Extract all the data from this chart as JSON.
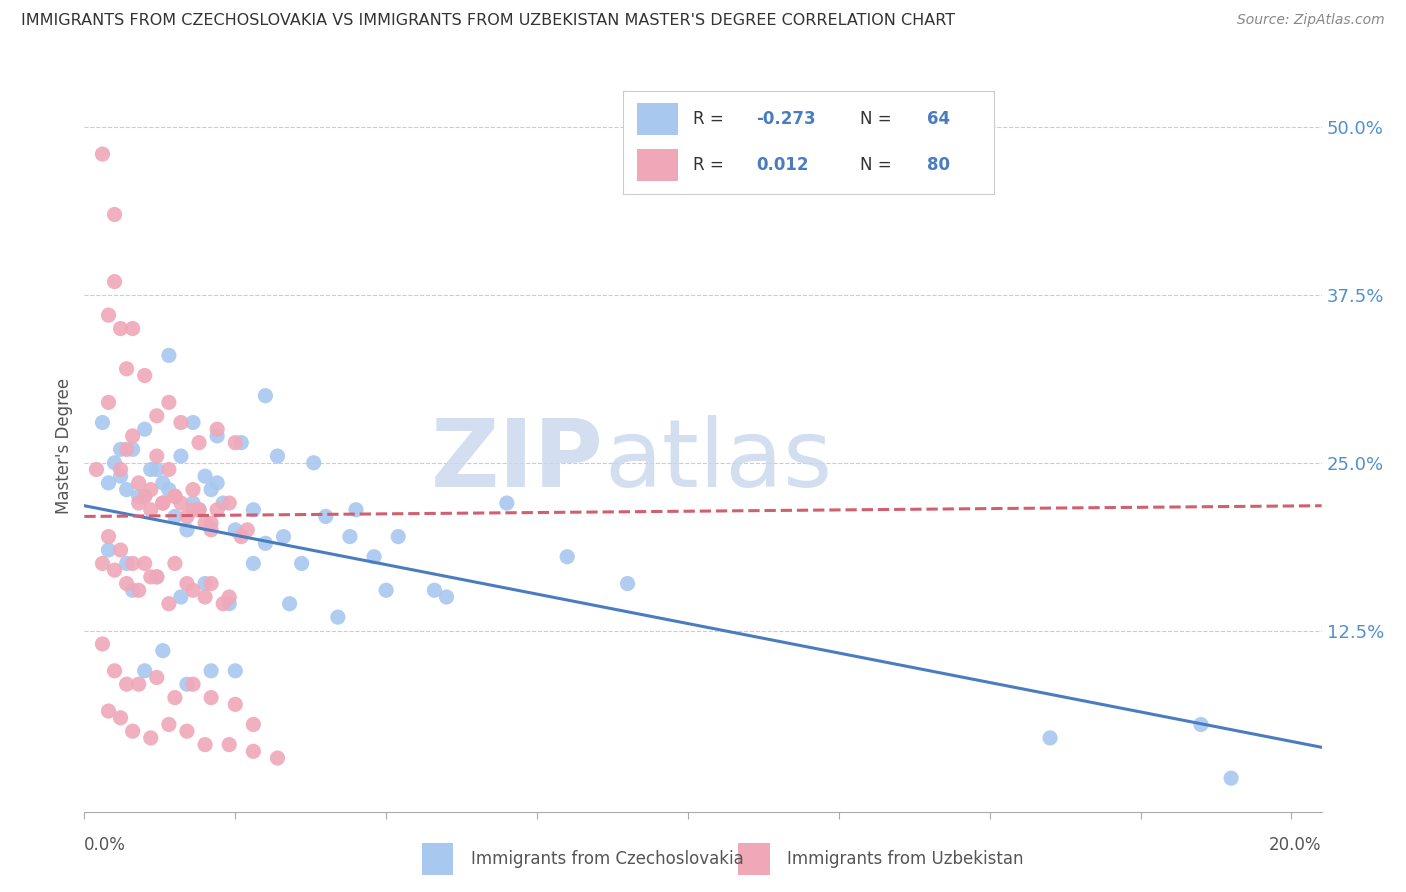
{
  "title": "IMMIGRANTS FROM CZECHOSLOVAKIA VS IMMIGRANTS FROM UZBEKISTAN MASTER'S DEGREE CORRELATION CHART",
  "source": "Source: ZipAtlas.com",
  "ylabel": "Master's Degree",
  "right_ytick_labels": [
    "50.0%",
    "37.5%",
    "25.0%",
    "12.5%"
  ],
  "right_ytick_vals": [
    0.5,
    0.375,
    0.25,
    0.125
  ],
  "xmin": 0.0,
  "xmax": 0.205,
  "ymin": -0.01,
  "ymax": 0.535,
  "blue_R": -0.273,
  "blue_N": 64,
  "pink_R": 0.012,
  "pink_N": 80,
  "blue_color": "#a8c8f0",
  "pink_color": "#f0a8b8",
  "blue_line_color": "#4a7cc0",
  "pink_line_color": "#d06070",
  "legend_label_blue": "Immigrants from Czechoslovakia",
  "legend_label_pink": "Immigrants from Uzbekistan",
  "blue_scatter_x": [
    0.004,
    0.006,
    0.008,
    0.01,
    0.012,
    0.014,
    0.016,
    0.018,
    0.02,
    0.022,
    0.005,
    0.007,
    0.009,
    0.011,
    0.013,
    0.015,
    0.017,
    0.019,
    0.021,
    0.023,
    0.025,
    0.028,
    0.03,
    0.033,
    0.036,
    0.04,
    0.044,
    0.048,
    0.052,
    0.058,
    0.003,
    0.006,
    0.01,
    0.014,
    0.018,
    0.022,
    0.026,
    0.032,
    0.038,
    0.045,
    0.008,
    0.012,
    0.016,
    0.02,
    0.024,
    0.028,
    0.034,
    0.042,
    0.05,
    0.06,
    0.004,
    0.007,
    0.01,
    0.013,
    0.017,
    0.021,
    0.025,
    0.03,
    0.07,
    0.08,
    0.09,
    0.16,
    0.185,
    0.19
  ],
  "blue_scatter_y": [
    0.235,
    0.24,
    0.26,
    0.225,
    0.245,
    0.23,
    0.255,
    0.22,
    0.24,
    0.235,
    0.25,
    0.23,
    0.225,
    0.245,
    0.235,
    0.21,
    0.2,
    0.215,
    0.23,
    0.22,
    0.2,
    0.215,
    0.19,
    0.195,
    0.175,
    0.21,
    0.195,
    0.18,
    0.195,
    0.155,
    0.28,
    0.26,
    0.275,
    0.33,
    0.28,
    0.27,
    0.265,
    0.255,
    0.25,
    0.215,
    0.155,
    0.165,
    0.15,
    0.16,
    0.145,
    0.175,
    0.145,
    0.135,
    0.155,
    0.15,
    0.185,
    0.175,
    0.095,
    0.11,
    0.085,
    0.095,
    0.095,
    0.3,
    0.22,
    0.18,
    0.16,
    0.045,
    0.055,
    0.015
  ],
  "pink_scatter_x": [
    0.002,
    0.004,
    0.005,
    0.006,
    0.007,
    0.008,
    0.009,
    0.01,
    0.011,
    0.012,
    0.013,
    0.014,
    0.015,
    0.016,
    0.017,
    0.018,
    0.019,
    0.02,
    0.021,
    0.022,
    0.003,
    0.005,
    0.007,
    0.009,
    0.011,
    0.013,
    0.015,
    0.018,
    0.021,
    0.024,
    0.004,
    0.006,
    0.008,
    0.01,
    0.012,
    0.014,
    0.016,
    0.019,
    0.022,
    0.025,
    0.003,
    0.005,
    0.007,
    0.009,
    0.011,
    0.014,
    0.017,
    0.02,
    0.023,
    0.026,
    0.004,
    0.006,
    0.008,
    0.01,
    0.012,
    0.015,
    0.018,
    0.021,
    0.024,
    0.027,
    0.003,
    0.005,
    0.007,
    0.009,
    0.012,
    0.015,
    0.018,
    0.021,
    0.025,
    0.028,
    0.004,
    0.006,
    0.008,
    0.011,
    0.014,
    0.017,
    0.02,
    0.024,
    0.028,
    0.032
  ],
  "pink_scatter_y": [
    0.245,
    0.295,
    0.435,
    0.245,
    0.32,
    0.27,
    0.22,
    0.225,
    0.215,
    0.255,
    0.22,
    0.245,
    0.225,
    0.22,
    0.21,
    0.23,
    0.215,
    0.205,
    0.2,
    0.215,
    0.48,
    0.385,
    0.26,
    0.235,
    0.23,
    0.22,
    0.225,
    0.215,
    0.205,
    0.22,
    0.36,
    0.35,
    0.35,
    0.315,
    0.285,
    0.295,
    0.28,
    0.265,
    0.275,
    0.265,
    0.175,
    0.17,
    0.16,
    0.155,
    0.165,
    0.145,
    0.16,
    0.15,
    0.145,
    0.195,
    0.195,
    0.185,
    0.175,
    0.175,
    0.165,
    0.175,
    0.155,
    0.16,
    0.15,
    0.2,
    0.115,
    0.095,
    0.085,
    0.085,
    0.09,
    0.075,
    0.085,
    0.075,
    0.07,
    0.055,
    0.065,
    0.06,
    0.05,
    0.045,
    0.055,
    0.05,
    0.04,
    0.04,
    0.035,
    0.03
  ],
  "blue_trend_x": [
    0.0,
    0.205
  ],
  "blue_trend_y": [
    0.218,
    0.038
  ],
  "pink_trend_x": [
    0.0,
    0.205
  ],
  "pink_trend_y": [
    0.21,
    0.218
  ],
  "grid_color": "#cccccc",
  "bg_color": "#ffffff"
}
